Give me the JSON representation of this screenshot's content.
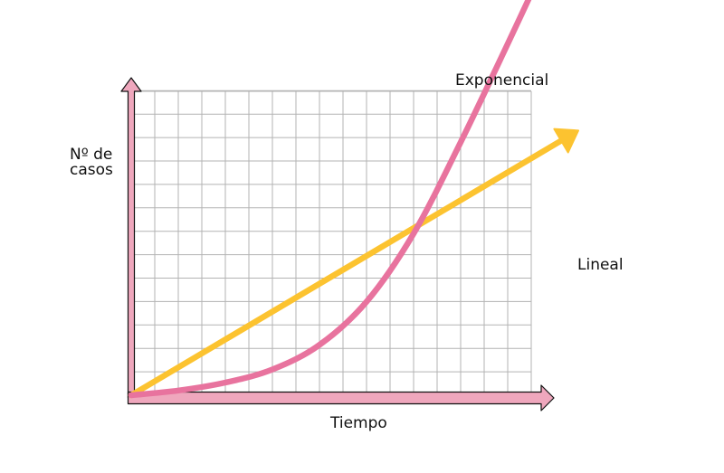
{
  "chart_data": {
    "type": "line",
    "title": "",
    "xlabel": "Tiempo",
    "ylabel_lines": [
      "Nº de",
      "casos"
    ],
    "grid": true,
    "series": [
      {
        "name": "Exponencial",
        "color": "#e8739e",
        "x": [
          0,
          2,
          4,
          6,
          8,
          10,
          12,
          14,
          16,
          18
        ],
        "y": [
          0.0,
          0.2,
          0.54,
          1.1,
          2.15,
          3.99,
          6.9,
          10.8,
          15.0,
          19.3
        ]
      },
      {
        "name": "Lineal",
        "color": "#fcc330",
        "x": [
          0,
          19
        ],
        "y": [
          0,
          11.3
        ]
      }
    ],
    "axis_color": "#efa7bd"
  }
}
